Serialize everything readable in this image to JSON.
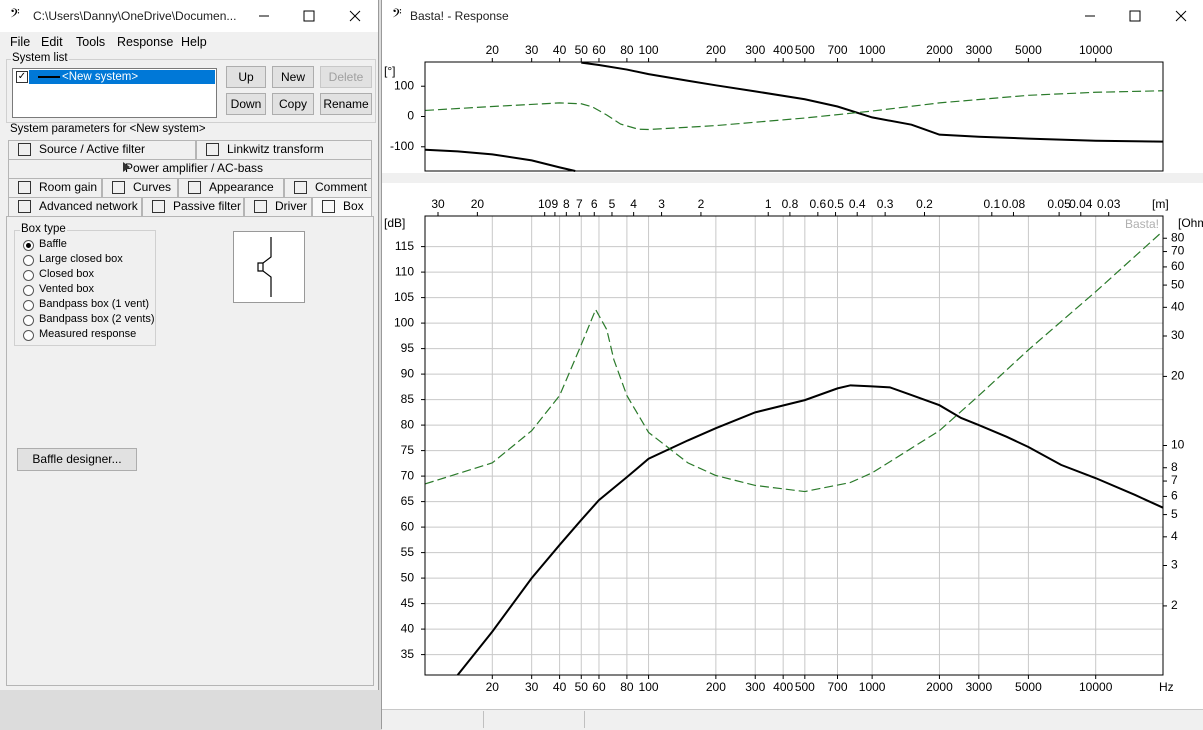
{
  "left_window": {
    "title": "C:\\Users\\Danny\\OneDrive\\Documen...",
    "menu": [
      "File",
      "Edit",
      "Tools",
      "Response",
      "Help"
    ],
    "system_list": {
      "label": "System list",
      "items": [
        "<New system>"
      ],
      "buttons": [
        [
          "Up",
          "New",
          "Delete"
        ],
        [
          "Down",
          "Copy",
          "Rename"
        ]
      ]
    },
    "parameters_label": "System parameters for <New system>",
    "tabs": [
      [
        "Source / Active filter",
        "Linkwitz transform"
      ],
      [
        "Power amplifier / AC-bass"
      ],
      [
        "Room gain",
        "Curves",
        "Appearance",
        "Comment"
      ],
      [
        "Advanced network",
        "Passive filter",
        "Driver",
        "Box"
      ]
    ],
    "box_type": {
      "label": "Box type",
      "options": [
        "Baffle",
        "Large closed box",
        "Closed box",
        "Vented box",
        "Bandpass box (1 vent)",
        "Bandpass box (2 vents)",
        "Measured response"
      ],
      "selected": 0
    },
    "baffle_button": "Baffle designer..."
  },
  "right_window": {
    "title": "Basta! - Response"
  },
  "chart_data": [
    {
      "type": "line",
      "y_label": "[°]",
      "log_x": true,
      "xlim": [
        10,
        20000
      ],
      "xticks": [
        20,
        30,
        40,
        50,
        60,
        80,
        100,
        200,
        300,
        400,
        500,
        700,
        1000,
        2000,
        3000,
        5000,
        10000
      ],
      "ylim": [
        -180,
        180
      ],
      "yticks": [
        -100,
        0,
        100
      ],
      "series": [
        {
          "color": "#000000",
          "x": [
            10,
            14,
            20,
            30,
            40,
            47
          ],
          "values": [
            -110,
            -115,
            -125,
            -145,
            -168,
            -180
          ]
        },
        {
          "color": "#000000",
          "x": [
            50,
            60,
            80,
            100,
            150,
            200,
            300,
            500,
            700,
            1000,
            1500,
            2000,
            3000,
            5000,
            10000,
            20000
          ],
          "values": [
            178,
            170,
            155,
            140,
            118,
            103,
            83,
            57,
            33,
            -3,
            -27,
            -60,
            -67,
            -73,
            -80,
            -83
          ]
        },
        {
          "color": "#2a7a2a",
          "dashed": true,
          "x": [
            10,
            20,
            40,
            50,
            56,
            65,
            75,
            90,
            100,
            200,
            500,
            1000,
            2000,
            5000,
            10000,
            20000
          ],
          "values": [
            20,
            33,
            45,
            42,
            32,
            5,
            -25,
            -42,
            -43,
            -30,
            -5,
            18,
            45,
            70,
            80,
            85
          ]
        }
      ]
    },
    {
      "type": "line",
      "watermark": "Basta!",
      "y_label": "[dB]",
      "y2_label": "[Ohm]",
      "x_label": "Hz",
      "x2_label": "[m]",
      "log_x": true,
      "grid": true,
      "xlim": [
        10,
        20000
      ],
      "xticks": [
        20,
        30,
        40,
        50,
        60,
        80,
        100,
        200,
        300,
        400,
        500,
        700,
        1000,
        2000,
        3000,
        5000,
        10000
      ],
      "x2lim": [
        34.3,
        0.01715
      ],
      "x2ticks": [
        30,
        20,
        10,
        9,
        8,
        7,
        6,
        5,
        4,
        3,
        2,
        1,
        0.8,
        0.6,
        0.5,
        0.4,
        0.3,
        0.2,
        0.1,
        0.08,
        0.05,
        0.04,
        0.03
      ],
      "ylim": [
        31,
        121
      ],
      "yticks": [
        35,
        40,
        45,
        50,
        55,
        60,
        65,
        70,
        75,
        80,
        85,
        90,
        95,
        100,
        105,
        110,
        115
      ],
      "log_y2": true,
      "y2lim": [
        1,
        100
      ],
      "y2ticks": [
        2,
        3,
        4,
        5,
        6,
        7,
        8,
        10,
        20,
        30,
        40,
        50,
        60,
        70,
        80
      ],
      "series": [
        {
          "color": "#000000",
          "x": [
            14,
            20,
            30,
            40,
            50,
            60,
            80,
            100,
            150,
            200,
            300,
            500,
            700,
            800,
            1000,
            1200,
            1500,
            2000,
            2500,
            3000,
            4000,
            5000,
            7000,
            10000,
            15000,
            20000
          ],
          "values": [
            31,
            39.5,
            50,
            56.5,
            61.4,
            65.3,
            69.8,
            73.4,
            77,
            79.4,
            82.5,
            84.9,
            87.2,
            87.8,
            87.6,
            87.4,
            85.9,
            83.9,
            81.4,
            80,
            77.7,
            75.7,
            72.2,
            69.6,
            66.3,
            63.8
          ]
        },
        {
          "color": "#2a7a2a",
          "dashed": true,
          "axis": "y2",
          "x": [
            10,
            20,
            30,
            40,
            50,
            58,
            65,
            70,
            80,
            100,
            150,
            200,
            300,
            500,
            800,
            1000,
            2000,
            3000,
            5000,
            10000,
            20000
          ],
          "values": [
            6.8,
            8.4,
            11.6,
            16.5,
            27.5,
            39.1,
            32,
            23.6,
            16.5,
            11.4,
            8.4,
            7.4,
            6.7,
            6.3,
            6.9,
            7.6,
            11.6,
            16.5,
            26.1,
            46.8,
            86
          ]
        }
      ]
    }
  ]
}
